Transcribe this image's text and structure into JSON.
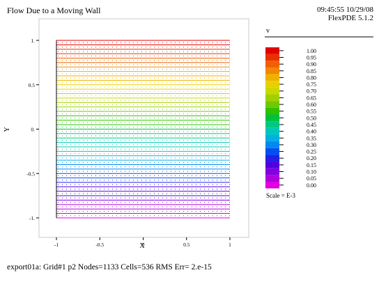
{
  "header": {
    "title": "Flow Due to a Moving Wall",
    "timestamp": "09:45:55 10/29/08",
    "version": "FlexPDE 5.1.2"
  },
  "footer": {
    "text": "export01a:  Grid#1  p2  Nodes=1133 Cells=536 RMS Err= 2.e-15"
  },
  "chart_data": {
    "type": "contour",
    "title": "Flow Due to a Moving Wall",
    "xlabel": "X",
    "ylabel": "Y",
    "xlim": [
      -1,
      1
    ],
    "ylim": [
      -1,
      1
    ],
    "x_ticks": [
      -1,
      -0.5,
      0,
      0.5,
      1
    ],
    "x_tick_labels": [
      "-1",
      "-0.5",
      "0",
      "0.5",
      "1"
    ],
    "y_ticks": [
      1,
      0.5,
      0,
      -0.5,
      -1
    ],
    "y_tick_labels": [
      "1.",
      "0.5",
      "0.",
      "-0.5",
      "-1."
    ],
    "variable": "v",
    "scale_label": "Scale = E-3",
    "legend_levels": [
      1.0,
      0.95,
      0.9,
      0.85,
      0.8,
      0.75,
      0.7,
      0.65,
      0.6,
      0.55,
      0.5,
      0.45,
      0.4,
      0.35,
      0.3,
      0.25,
      0.2,
      0.15,
      0.1,
      0.05,
      0.0
    ],
    "legend_level_labels": [
      "1.00",
      "0.95",
      "0.90",
      "0.85",
      "0.80",
      "0.75",
      "0.70",
      "0.65",
      "0.60",
      "0.55",
      "0.50",
      "0.45",
      "0.40",
      "0.35",
      "0.30",
      "0.25",
      "0.20",
      "0.15",
      "0.10",
      "0.05",
      "0.00"
    ],
    "legend_colors": [
      "#e00000",
      "#ea3000",
      "#f06000",
      "#f08800",
      "#f0b000",
      "#e8d000",
      "#c8d800",
      "#a0d000",
      "#70c800",
      "#30c000",
      "#00c040",
      "#00c880",
      "#00c8b8",
      "#00b0e0",
      "#0088f0",
      "#0050f0",
      "#2020e8",
      "#5000e0",
      "#8000e0",
      "#b000e0",
      "#e000e0"
    ],
    "contour_description": "horizontal contour lines of v, increasing from 0.00 at y=-1 to 1.00 at y=1",
    "grid": false
  }
}
